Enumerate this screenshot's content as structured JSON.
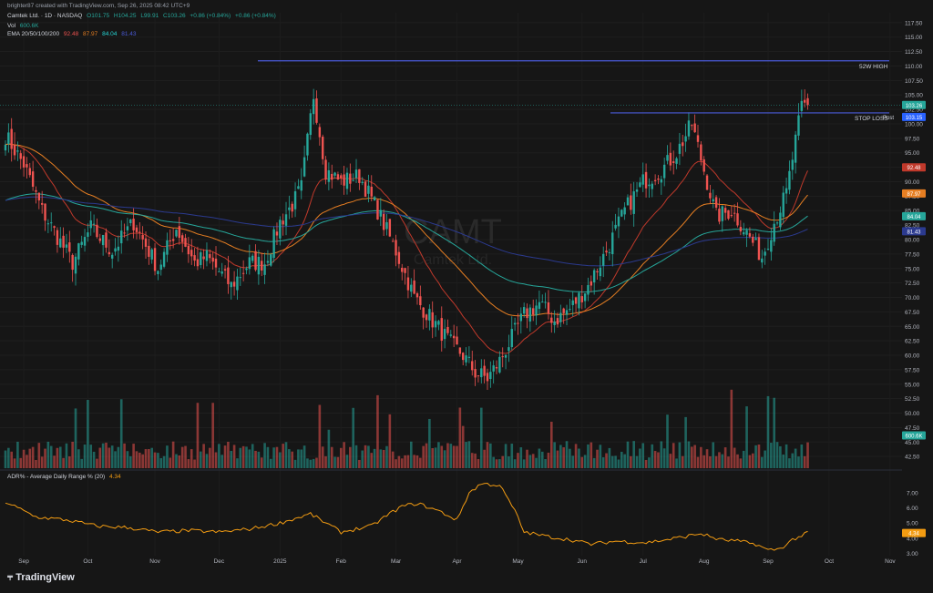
{
  "header": {
    "attribution": "brighter87 created with TradingView.com, Sep 26, 2025 08:42 UTC+9",
    "symbol_line": "Camtek Ltd. · 1D · NASDAQ",
    "ohlc": {
      "o": "O101.75",
      "h": "H104.25",
      "l": "L99.91",
      "c": "C103.26",
      "chg": "+0.86 (+0.84%)",
      "chg2": "+0.86 (+0.84%)"
    },
    "vol_label": "Vol",
    "vol_value": "600.6K",
    "ema_label": "EMA 20/50/100/200",
    "ema_values": [
      "92.48",
      "87.97",
      "84.04",
      "81.43"
    ],
    "adr_label": "ADR% - Average Daily Range % (20)",
    "adr_value": "4.34"
  },
  "watermark": {
    "symbol": "CAMT",
    "name": "Camtek Ltd."
  },
  "annotations": {
    "high_label": "52W HIGH",
    "stop_label": "STOP LOSS",
    "post_label": "Post"
  },
  "brand": {
    "logo_text": "TradingView"
  },
  "colors": {
    "up": "#26a69a",
    "down": "#ef5350",
    "ema20": "#c0392b",
    "ema50": "#e67e22",
    "ema100": "#26a69a",
    "ema200": "#2b3a8f",
    "adr": "#f39c12",
    "level": "#4a5ad8"
  },
  "chart_data": [
    {
      "type": "candlestick",
      "title": "Camtek Ltd. · 1D · NASDAQ",
      "x_labels": [
        "Sep",
        "Oct",
        "Nov",
        "Dec",
        "2025",
        "Feb",
        "Mar",
        "Apr",
        "May",
        "Jun",
        "Jul",
        "Aug",
        "Sep",
        "Oct",
        "Nov"
      ],
      "y_ticks": [
        "117.50",
        "115.00",
        "112.50",
        "110.00",
        "107.50",
        "105.00",
        "102.50",
        "100.00",
        "97.50",
        "95.00",
        "92.50",
        "90.00",
        "87.50",
        "85.00",
        "82.50",
        "80.00",
        "77.50",
        "75.00",
        "72.50",
        "70.00",
        "67.50",
        "65.00",
        "62.50",
        "60.00",
        "57.50",
        "55.00",
        "52.50",
        "50.00",
        "47.50",
        "45.00",
        "42.50"
      ],
      "ylim": [
        41.5,
        118.5
      ],
      "last_price": "103.26",
      "post_price": "103.15",
      "levels": [
        {
          "label": "52W HIGH",
          "value": 110.9
        },
        {
          "label": "STOP LOSS",
          "value": 101.9
        }
      ],
      "ema_badges": [
        {
          "name": "EMA 20",
          "value": "92.48"
        },
        {
          "name": "EMA 50",
          "value": "87.97"
        },
        {
          "name": "EMA 100",
          "value": "84.04"
        },
        {
          "name": "EMA 200",
          "value": "81.43"
        }
      ],
      "close_anchors": [
        [
          0,
          98
        ],
        [
          6,
          93
        ],
        [
          12,
          85
        ],
        [
          22,
          76
        ],
        [
          28,
          82
        ],
        [
          35,
          78
        ],
        [
          42,
          83
        ],
        [
          50,
          75
        ],
        [
          56,
          82
        ],
        [
          62,
          76
        ],
        [
          66,
          77
        ],
        [
          74,
          72
        ],
        [
          80,
          76
        ],
        [
          85,
          76
        ],
        [
          90,
          83
        ],
        [
          94,
          86
        ],
        [
          97,
          89
        ],
        [
          101,
          105
        ],
        [
          105,
          92
        ],
        [
          110,
          90
        ],
        [
          116,
          91
        ],
        [
          122,
          85
        ],
        [
          128,
          78
        ],
        [
          134,
          70
        ],
        [
          140,
          66
        ],
        [
          146,
          62
        ],
        [
          150,
          60
        ],
        [
          154,
          57
        ],
        [
          158,
          56
        ],
        [
          162,
          59
        ],
        [
          166,
          63
        ],
        [
          170,
          67
        ],
        [
          175,
          69
        ],
        [
          180,
          66
        ],
        [
          185,
          68
        ],
        [
          191,
          72
        ],
        [
          197,
          78
        ],
        [
          203,
          85
        ],
        [
          209,
          90
        ],
        [
          215,
          92
        ],
        [
          220,
          95
        ],
        [
          225,
          100
        ],
        [
          229,
          92
        ],
        [
          233,
          84
        ],
        [
          238,
          85
        ],
        [
          242,
          82
        ],
        [
          248,
          77
        ],
        [
          252,
          83
        ],
        [
          256,
          88
        ],
        [
          259,
          97
        ],
        [
          261,
          103
        ],
        [
          263,
          103.3
        ]
      ],
      "volume_label": "Vol",
      "volume_last": "600.6K"
    },
    {
      "type": "line",
      "title": "ADR% - Average Daily Range % (20)",
      "y_ticks": [
        "7.00",
        "6.00",
        "5.00",
        "4.00",
        "3.00"
      ],
      "ylim": [
        2.6,
        7.6
      ],
      "last_value": "4.34",
      "value_anchors": [
        [
          0,
          6.4
        ],
        [
          10,
          5.4
        ],
        [
          20,
          5.2
        ],
        [
          30,
          4.8
        ],
        [
          40,
          4.7
        ],
        [
          50,
          4.4
        ],
        [
          60,
          4.5
        ],
        [
          70,
          4.4
        ],
        [
          80,
          4.6
        ],
        [
          90,
          5.0
        ],
        [
          100,
          5.6
        ],
        [
          110,
          4.4
        ],
        [
          120,
          4.8
        ],
        [
          125,
          5.5
        ],
        [
          130,
          6.1
        ],
        [
          135,
          6.3
        ],
        [
          142,
          5.8
        ],
        [
          148,
          5.2
        ],
        [
          152,
          7.0
        ],
        [
          156,
          7.6
        ],
        [
          162,
          7.5
        ],
        [
          167,
          5.8
        ],
        [
          170,
          4.4
        ],
        [
          178,
          4.1
        ],
        [
          185,
          3.9
        ],
        [
          192,
          3.6
        ],
        [
          200,
          3.8
        ],
        [
          210,
          3.7
        ],
        [
          220,
          4.0
        ],
        [
          228,
          4.3
        ],
        [
          234,
          3.9
        ],
        [
          240,
          3.8
        ],
        [
          246,
          3.6
        ],
        [
          250,
          3.2
        ],
        [
          254,
          3.3
        ],
        [
          258,
          3.9
        ],
        [
          263,
          4.34
        ]
      ]
    }
  ]
}
